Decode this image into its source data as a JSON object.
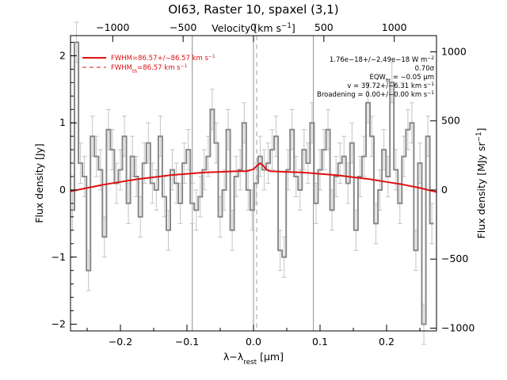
{
  "chart_data": {
    "type": "line",
    "title": "OI63, Raster 10, spaxel (3,1)",
    "xlabel": "λ−λ_rest [μm]",
    "ylabel": "Flux density [Jy]",
    "top_xlabel": "Velocity [km s^-1]",
    "right_ylabel": "Flux density [MJy sr^-1]",
    "xlim": [
      -0.275,
      0.275
    ],
    "ylim": [
      -2.1,
      2.3
    ],
    "velocity_lim": [
      -1300,
      1300
    ],
    "right_lim": [
      -1020,
      1117
    ],
    "x_ticks": [
      -0.2,
      -0.1,
      0.0,
      0.1,
      0.2
    ],
    "x_tick_labels": [
      "−0.2",
      "−0.1",
      "0.0",
      "0.1",
      "0.2"
    ],
    "y_ticks": [
      -2,
      -1,
      0,
      1,
      2
    ],
    "y_tick_labels": [
      "−2",
      "−1",
      "0",
      "1",
      "2"
    ],
    "velocity_ticks": [
      -1000,
      -500,
      0,
      500,
      1000
    ],
    "velocity_tick_labels": [
      "−1000",
      "−500",
      "0",
      "500",
      "1000"
    ],
    "right_ticks": [
      -1000,
      -500,
      0,
      500,
      1000
    ],
    "right_tick_labels": [
      "−1000",
      "−500",
      "0",
      "500",
      "1000"
    ],
    "vertical_lines": [
      -0.092,
      0.0,
      0.09
    ],
    "dashed_line_x": 0.0,
    "legend": [
      {
        "label": "FWHM=86.57+/−86.57 km s^-1",
        "style": "solid",
        "color": "#e01010"
      },
      {
        "label": "FWHM_th=86.57 km s^-1",
        "style": "dashed",
        "color": "#e01010"
      }
    ],
    "annotations": [
      "1.76e−18+/−2.49e−18 W m^-2",
      "0.70σ",
      "EQW_fit = −0.05 μm",
      "v = 39.72+/−6.31 km s^-1",
      "Broadening = 0.00+/−0.00 km s^-1"
    ],
    "series": [
      {
        "name": "spectrum",
        "color": "#888888",
        "x": [
          -0.272,
          -0.266,
          -0.26,
          -0.254,
          -0.248,
          -0.242,
          -0.236,
          -0.23,
          -0.224,
          -0.218,
          -0.212,
          -0.206,
          -0.2,
          -0.194,
          -0.188,
          -0.182,
          -0.176,
          -0.17,
          -0.164,
          -0.158,
          -0.152,
          -0.146,
          -0.14,
          -0.134,
          -0.128,
          -0.122,
          -0.116,
          -0.11,
          -0.104,
          -0.098,
          -0.092,
          -0.086,
          -0.08,
          -0.074,
          -0.068,
          -0.062,
          -0.056,
          -0.05,
          -0.044,
          -0.038,
          -0.032,
          -0.026,
          -0.02,
          -0.014,
          -0.008,
          -0.002,
          0.004,
          0.01,
          0.016,
          0.022,
          0.028,
          0.034,
          0.04,
          0.046,
          0.052,
          0.058,
          0.064,
          0.07,
          0.076,
          0.082,
          0.088,
          0.094,
          0.1,
          0.106,
          0.112,
          0.118,
          0.124,
          0.13,
          0.136,
          0.142,
          0.148,
          0.154,
          0.16,
          0.166,
          0.172,
          0.178,
          0.184,
          0.19,
          0.196,
          0.202,
          0.208,
          0.214,
          0.22,
          0.226,
          0.232,
          0.238,
          0.244,
          0.25,
          0.256,
          0.262,
          0.268
        ],
        "y": [
          -0.3,
          2.2,
          0.4,
          0.2,
          -1.2,
          0.8,
          0.5,
          0.3,
          -0.7,
          0.9,
          0.6,
          0.1,
          0.3,
          0.8,
          -0.2,
          0.5,
          0.2,
          -0.4,
          0.4,
          0.7,
          0.1,
          0.0,
          0.8,
          -0.1,
          -0.6,
          0.3,
          0.1,
          -0.2,
          0.4,
          0.6,
          -0.2,
          -0.3,
          -0.1,
          0.3,
          0.5,
          1.2,
          0.7,
          -0.4,
          0.0,
          0.9,
          -0.6,
          0.2,
          0.3,
          1.0,
          0.0,
          -0.3,
          0.1,
          0.5,
          0.3,
          0.4,
          0.6,
          0.8,
          -0.9,
          -1.0,
          0.3,
          0.9,
          0.2,
          0.0,
          0.6,
          0.4,
          1.0,
          -0.2,
          0.3,
          0.6,
          0.9,
          -0.3,
          0.2,
          0.4,
          0.5,
          0.1,
          0.7,
          -0.6,
          0.2,
          0.5,
          1.3,
          0.8,
          -0.5,
          0.0,
          0.6,
          0.2,
          1.6,
          0.3,
          -0.2,
          0.5,
          0.9,
          1.0,
          -0.9,
          0.4,
          -2.0,
          0.8,
          -0.5
        ],
        "yerr": 0.3
      },
      {
        "name": "fit",
        "color": "#e01010",
        "x": [
          -0.275,
          -0.25,
          -0.225,
          -0.2,
          -0.175,
          -0.15,
          -0.125,
          -0.1,
          -0.075,
          -0.05,
          -0.025,
          -0.01,
          0.0,
          0.005,
          0.01,
          0.015,
          0.02,
          0.025,
          0.05,
          0.075,
          0.1,
          0.125,
          0.15,
          0.175,
          0.2,
          0.225,
          0.25,
          0.275
        ],
        "y": [
          -0.02,
          0.03,
          0.08,
          0.12,
          0.16,
          0.19,
          0.22,
          0.24,
          0.26,
          0.27,
          0.28,
          0.28,
          0.31,
          0.36,
          0.4,
          0.36,
          0.3,
          0.28,
          0.27,
          0.26,
          0.24,
          0.22,
          0.19,
          0.16,
          0.12,
          0.08,
          0.03,
          -0.03
        ]
      }
    ]
  }
}
